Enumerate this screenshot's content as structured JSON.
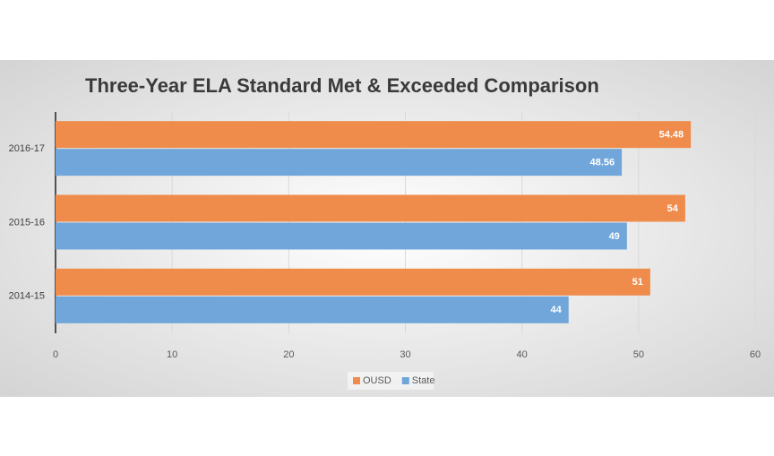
{
  "chart_data": {
    "type": "bar",
    "orientation": "horizontal",
    "title": "Three-Year ELA Standard Met & Exceeded Comparison",
    "categories": [
      "2016-17",
      "2015-16",
      "2014-15"
    ],
    "series": [
      {
        "name": "OUSD",
        "color": "#ef8c4c",
        "values": [
          54.48,
          54,
          51
        ]
      },
      {
        "name": "State",
        "color": "#70a6da",
        "values": [
          48.56,
          49,
          44
        ]
      }
    ],
    "xlim": [
      0,
      60
    ],
    "xticks": [
      0,
      10,
      20,
      30,
      40,
      50,
      60
    ],
    "grid": true,
    "legend": "bottom"
  }
}
